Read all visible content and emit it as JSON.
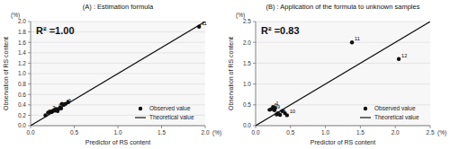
{
  "chart_data": [
    {
      "type": "scatter",
      "title": "(A) : Estimation formula",
      "x_label": "Predictor of RS content",
      "y_label": "Observation of RS content",
      "xlim": [
        0.0,
        2.0
      ],
      "ylim": [
        0,
        2.0
      ],
      "xticks": [
        {
          "value": 0,
          "label": "0.0"
        },
        0.5,
        {
          "value": 1,
          "label": "1.0"
        },
        1.5,
        {
          "value": 2,
          "label": "2.0"
        }
      ],
      "yticks": [
        {
          "value": 0,
          "label": "0.0"
        },
        0.2,
        0.4,
        0.6,
        0.8,
        {
          "value": 1,
          "label": "1.0"
        },
        1.2,
        1.4,
        1.6,
        1.8,
        {
          "value": 2,
          "label": "2.0"
        }
      ],
      "grid": "y",
      "legend": "lower-right",
      "series": [
        {
          "name": "Observed value",
          "type": "scatter",
          "color": "#111111",
          "marker": "circle",
          "x": [
            0.17,
            0.2,
            0.22,
            0.24,
            0.25,
            0.27,
            0.28,
            0.29,
            0.3,
            0.31,
            0.33,
            0.34,
            0.35,
            0.36,
            0.38,
            0.4,
            0.43,
            1.93
          ],
          "values": [
            0.2,
            0.25,
            0.27,
            0.26,
            0.28,
            0.3,
            0.29,
            0.32,
            0.31,
            0.28,
            0.33,
            0.35,
            0.33,
            0.42,
            0.4,
            0.42,
            0.45,
            1.9
          ]
        },
        {
          "name": "Theoretical value",
          "type": "line",
          "color": "#111111",
          "x": [
            0.0,
            2.0
          ],
          "values": [
            0.0,
            2.0
          ]
        }
      ],
      "annotations": [
        {
          "text": "R² =1.00"
        },
        {
          "text": "(%)",
          "axis": "y"
        },
        {
          "text": "(%)",
          "axis": "x"
        },
        {
          "text": "10",
          "x": 0.17,
          "y": 0.2
        },
        {
          "text": "7",
          "x": 0.22,
          "y": 0.27
        },
        {
          "text": "6",
          "x": 0.29,
          "y": 0.32
        },
        {
          "text": "8",
          "x": 0.38,
          "y": 0.4
        },
        {
          "text": "3",
          "x": 0.4,
          "y": 0.42
        },
        {
          "text": "11",
          "x": 1.93,
          "y": 1.9
        }
      ]
    },
    {
      "type": "scatter",
      "title": "(B) : Application of the formula to unknown samples",
      "x_label": "Predictor of RS content",
      "y_label": "Observation of RS content",
      "xlim": [
        0.0,
        2.5
      ],
      "ylim": [
        0,
        2.5
      ],
      "xticks": [
        {
          "value": 0,
          "label": "0.0"
        },
        0.5,
        {
          "value": 1,
          "label": "1.0"
        },
        1.5,
        {
          "value": 2,
          "label": "2.0"
        },
        2.5
      ],
      "yticks": [
        {
          "value": 0,
          "label": "0.0"
        },
        0.5,
        {
          "value": 1,
          "label": "1.0"
        },
        1.5,
        {
          "value": 2,
          "label": "2.0"
        },
        2.5
      ],
      "grid": "y",
      "legend": "lower-right",
      "series": [
        {
          "name": "Observed value",
          "type": "scatter",
          "color": "#111111",
          "marker": "circle",
          "x": [
            0.2,
            0.23,
            0.25,
            0.27,
            0.28,
            0.3,
            0.32,
            0.35,
            0.38,
            0.42,
            0.45,
            1.38,
            2.05
          ],
          "values": [
            0.38,
            0.4,
            0.45,
            0.37,
            0.42,
            0.27,
            0.3,
            0.26,
            0.35,
            0.3,
            0.25,
            2.0,
            1.6
          ]
        },
        {
          "name": "Theoretical value",
          "type": "line",
          "color": "#111111",
          "x": [
            0.0,
            2.5
          ],
          "values": [
            0.0,
            2.5
          ]
        }
      ],
      "annotations": [
        {
          "text": "R² =0.83"
        },
        {
          "text": "(%)",
          "axis": "y"
        },
        {
          "text": "(%)",
          "axis": "x"
        },
        {
          "text": "6",
          "x": 0.23,
          "y": 0.4
        },
        {
          "text": "1",
          "x": 0.25,
          "y": 0.45
        },
        {
          "text": "9",
          "x": 0.27,
          "y": 0.37
        },
        {
          "text": "8",
          "x": 0.35,
          "y": 0.26
        },
        {
          "text": "10",
          "x": 0.45,
          "y": 0.25
        },
        {
          "text": "11",
          "x": 1.38,
          "y": 2.0
        },
        {
          "text": "12",
          "x": 2.05,
          "y": 1.6
        }
      ]
    }
  ]
}
